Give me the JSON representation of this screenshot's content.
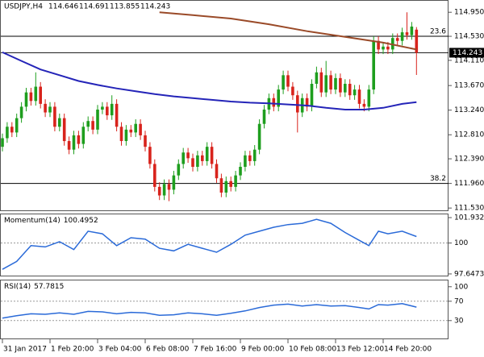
{
  "chart_data": [
    {
      "type": "candlestick",
      "title": "USDJPY,H4",
      "categories": [
        "31 Jan 2017",
        null,
        null,
        null,
        null,
        null,
        null,
        null,
        null,
        null,
        "1 Feb 20:00",
        null,
        null,
        null,
        null,
        null,
        null,
        null,
        null,
        null,
        "3 Feb 04:00",
        null,
        null,
        null,
        null,
        null,
        null,
        null,
        null,
        null,
        "6 Feb 08:00",
        null,
        null,
        null,
        null,
        null,
        null,
        null,
        null,
        null,
        "7 Feb 16:00",
        null,
        null,
        null,
        null,
        null,
        null,
        null,
        null,
        null,
        "9 Feb 00:00",
        null,
        null,
        null,
        null,
        null,
        null,
        null,
        null,
        null,
        "10 Feb 08:00",
        null,
        null,
        null,
        null,
        null,
        null,
        null,
        null,
        null,
        "13 Feb 12:00",
        null,
        null,
        null,
        null,
        null,
        null,
        null,
        null,
        null,
        "14 Feb 20:00",
        null,
        null,
        null,
        null,
        null,
        null,
        null
      ],
      "open": [
        112.6,
        112.75,
        112.95,
        112.85,
        113.1,
        113.3,
        113.55,
        113.4,
        113.65,
        113.35,
        113.2,
        113.3,
        112.95,
        113.1,
        112.7,
        112.55,
        112.8,
        112.65,
        112.95,
        113.05,
        112.9,
        113.25,
        113.3,
        113.15,
        113.35,
        112.95,
        112.7,
        112.9,
        112.85,
        113.0,
        112.8,
        112.6,
        112.3,
        111.9,
        111.75,
        111.95,
        111.85,
        112.1,
        112.3,
        112.5,
        112.4,
        112.25,
        112.45,
        112.35,
        112.6,
        112.3,
        112.05,
        111.8,
        112.0,
        111.9,
        112.1,
        112.25,
        112.45,
        112.35,
        112.55,
        113.0,
        113.25,
        113.45,
        113.3,
        113.6,
        113.85,
        113.65,
        113.5,
        113.2,
        113.45,
        113.3,
        113.7,
        113.9,
        113.55,
        113.85,
        113.6,
        113.8,
        113.55,
        113.7,
        113.5,
        113.6,
        113.35,
        113.3,
        113.6,
        114.45,
        114.3,
        114.35,
        114.3,
        114.5,
        114.45,
        114.6,
        114.55,
        114.646
      ],
      "high": [
        112.83,
        113.03,
        113.03,
        113.18,
        113.38,
        113.63,
        113.63,
        113.9,
        113.73,
        113.43,
        113.38,
        113.38,
        113.18,
        113.18,
        112.78,
        112.88,
        112.88,
        113.03,
        113.13,
        113.13,
        113.33,
        113.38,
        113.38,
        113.5,
        113.43,
        113.03,
        112.98,
        112.98,
        113.08,
        113.08,
        112.88,
        112.68,
        112.38,
        111.98,
        112.03,
        112.03,
        112.18,
        112.38,
        112.58,
        112.58,
        112.48,
        112.53,
        112.53,
        112.68,
        112.68,
        112.38,
        112.13,
        112.08,
        112.08,
        112.18,
        112.33,
        112.53,
        112.53,
        112.63,
        113.08,
        113.33,
        113.53,
        113.53,
        113.68,
        113.93,
        113.93,
        113.73,
        113.58,
        113.53,
        113.53,
        113.78,
        114.0,
        113.98,
        114.1,
        113.93,
        113.88,
        113.88,
        113.78,
        113.78,
        113.68,
        113.68,
        113.43,
        113.68,
        114.53,
        114.53,
        114.43,
        114.43,
        114.58,
        114.58,
        114.68,
        114.95,
        114.78,
        114.691
      ],
      "low": [
        112.52,
        112.67,
        112.77,
        112.77,
        113.02,
        113.22,
        113.32,
        113.32,
        113.27,
        113.12,
        113.12,
        112.87,
        112.87,
        112.62,
        112.47,
        112.47,
        112.57,
        112.57,
        112.87,
        112.82,
        112.82,
        113.17,
        113.07,
        113.07,
        112.87,
        112.62,
        112.62,
        112.77,
        112.77,
        112.72,
        112.52,
        112.22,
        111.82,
        111.67,
        111.67,
        111.65,
        111.77,
        112.02,
        112.22,
        112.32,
        112.17,
        112.17,
        112.27,
        112.27,
        112.22,
        111.97,
        111.72,
        111.72,
        111.82,
        111.82,
        112.02,
        112.17,
        112.27,
        112.27,
        112.47,
        112.92,
        113.17,
        113.22,
        113.22,
        113.52,
        113.57,
        113.42,
        112.85,
        113.12,
        113.22,
        113.22,
        113.62,
        113.47,
        113.47,
        113.52,
        113.52,
        113.47,
        113.47,
        113.42,
        113.42,
        113.27,
        113.22,
        113.22,
        113.52,
        114.22,
        114.22,
        114.22,
        114.22,
        114.37,
        114.37,
        114.47,
        114.47,
        113.855
      ],
      "close": [
        112.75,
        112.95,
        112.85,
        113.1,
        113.3,
        113.55,
        113.4,
        113.65,
        113.35,
        113.2,
        113.3,
        112.95,
        113.1,
        112.7,
        112.55,
        112.8,
        112.65,
        112.95,
        113.05,
        112.9,
        113.25,
        113.3,
        113.15,
        113.35,
        112.95,
        112.7,
        112.9,
        112.85,
        113.0,
        112.8,
        112.6,
        112.3,
        111.9,
        111.75,
        111.95,
        111.85,
        112.1,
        112.3,
        112.5,
        112.4,
        112.25,
        112.45,
        112.35,
        112.6,
        112.3,
        112.05,
        111.8,
        112.0,
        111.9,
        112.1,
        112.25,
        112.45,
        112.35,
        112.55,
        113.0,
        113.25,
        113.45,
        113.3,
        113.6,
        113.85,
        113.65,
        113.5,
        113.2,
        113.45,
        113.3,
        113.7,
        113.9,
        113.55,
        113.85,
        113.6,
        113.8,
        113.55,
        113.7,
        113.5,
        113.6,
        113.35,
        113.3,
        113.6,
        114.45,
        114.3,
        114.35,
        114.3,
        114.5,
        114.45,
        114.6,
        114.55,
        114.7,
        114.243
      ],
      "up_color": "#1e9e1e",
      "down_color": "#d8231c",
      "overlays": [
        {
          "color": "#2424b8",
          "x": [
            0,
            4,
            8,
            12,
            16,
            20,
            24,
            28,
            32,
            36,
            40,
            44,
            48,
            52,
            56,
            60,
            64,
            68,
            72,
            76,
            80,
            84,
            87
          ],
          "values": [
            114.25,
            114.1,
            113.95,
            113.85,
            113.75,
            113.68,
            113.62,
            113.57,
            113.52,
            113.48,
            113.45,
            113.42,
            113.39,
            113.37,
            113.36,
            113.34,
            113.32,
            113.28,
            113.25,
            113.25,
            113.28,
            113.35,
            113.38
          ]
        },
        {
          "color": "#9a4a28",
          "x": [
            33,
            40,
            48,
            56,
            64,
            72,
            80,
            87
          ],
          "values": [
            114.95,
            114.9,
            114.84,
            114.74,
            114.62,
            114.52,
            114.42,
            114.3
          ]
        }
      ],
      "fib_levels": [
        {
          "level": 23.6,
          "price": 114.53
        },
        {
          "level": 38.2,
          "price": 111.96
        }
      ],
      "ylim": [
        111.49,
        115.15
      ],
      "yticks": [
        {
          "value": 114.95,
          "label": "114.950"
        },
        {
          "value": 114.53,
          "label": "114.530"
        },
        {
          "value": 114.11,
          "label": "114.110"
        },
        {
          "value": 113.67,
          "label": "113.670"
        },
        {
          "value": 113.24,
          "label": "113.240"
        },
        {
          "value": 112.81,
          "label": "112.810"
        },
        {
          "value": 112.39,
          "label": "112.390"
        },
        {
          "value": 111.96,
          "label": "111.960"
        },
        {
          "value": 111.53,
          "label": "111.530"
        }
      ]
    },
    {
      "type": "line",
      "title": "Momentum(14)",
      "color": "#2a6ad8",
      "x": [
        0,
        3,
        6,
        9,
        12,
        15,
        18,
        21,
        24,
        27,
        30,
        33,
        36,
        39,
        42,
        45,
        48,
        51,
        54,
        57,
        60,
        63,
        66,
        69,
        72,
        75,
        77,
        79,
        81,
        84,
        87
      ],
      "values": [
        98.0,
        98.6,
        99.8,
        99.7,
        100.1,
        99.5,
        100.9,
        100.7,
        99.8,
        100.4,
        100.3,
        99.6,
        99.4,
        99.9,
        99.6,
        99.3,
        99.9,
        100.6,
        100.9,
        101.2,
        101.4,
        101.5,
        101.8,
        101.5,
        100.8,
        100.2,
        99.8,
        100.9,
        100.7,
        100.9,
        100.4952
      ],
      "levels": [
        100
      ],
      "ylim": [
        97.52,
        102.18
      ],
      "yticks": [
        101.9329,
        100,
        97.6473
      ]
    },
    {
      "type": "line",
      "title": "RSI(14)",
      "color": "#2a6ad8",
      "x": [
        0,
        3,
        6,
        9,
        12,
        15,
        18,
        21,
        24,
        27,
        30,
        33,
        36,
        39,
        42,
        45,
        48,
        51,
        54,
        57,
        60,
        63,
        66,
        69,
        72,
        75,
        77,
        79,
        81,
        84,
        87
      ],
      "values": [
        35,
        40,
        44,
        43,
        46,
        43,
        49,
        48,
        44,
        47,
        46,
        41,
        42,
        46,
        44,
        41,
        45,
        50,
        57,
        62,
        64,
        60,
        63,
        60,
        61,
        57,
        54,
        63,
        62,
        65,
        57.7815
      ],
      "levels": [
        70,
        30
      ],
      "ylim": [
        -7,
        113
      ],
      "yticks": [
        100,
        70,
        30
      ]
    }
  ]
}
